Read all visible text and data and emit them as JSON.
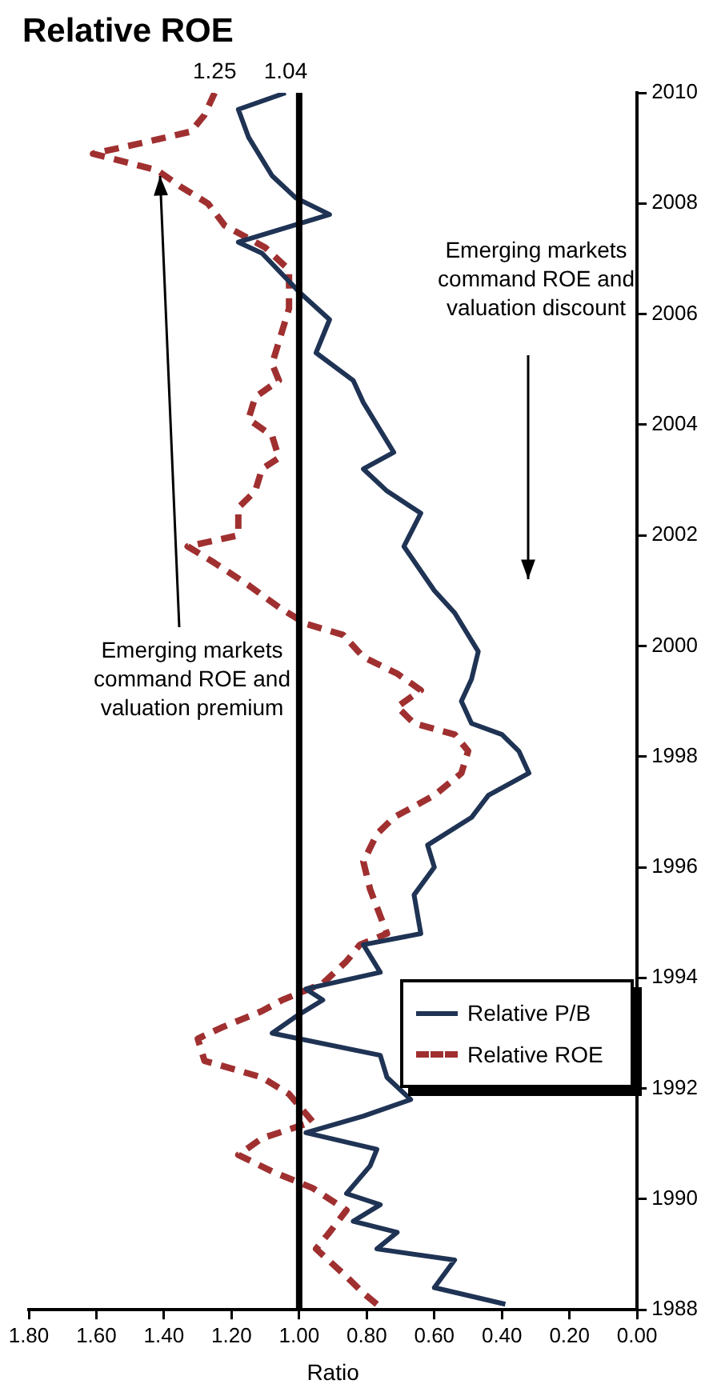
{
  "chart_data": {
    "type": "line",
    "title": "Relative ROE",
    "xlabel": "Ratio",
    "xlim": [
      1.8,
      0
    ],
    "xticks": [
      {
        "value": 1.8,
        "label": "1.80"
      },
      {
        "value": 1.6,
        "label": "1.60"
      },
      {
        "value": 1.4,
        "label": "1.40"
      },
      {
        "value": 1.2,
        "label": "1.20"
      },
      {
        "value": 1,
        "label": "1.00"
      },
      {
        "value": 0.8,
        "label": "0.80"
      },
      {
        "value": 0.6,
        "label": "0.60"
      },
      {
        "value": 0.4,
        "label": "0.40"
      },
      {
        "value": 0.2,
        "label": "0.20"
      },
      {
        "value": 0,
        "label": "0.00"
      }
    ],
    "ylim": [
      1988,
      2010
    ],
    "yticks": [
      1988,
      1990,
      1992,
      1994,
      1996,
      1998,
      2000,
      2002,
      2004,
      2006,
      2008,
      2010
    ],
    "grid": false,
    "legend": "bottom right",
    "marker": "none",
    "ref_lines": [
      {
        "axis": "x",
        "value": 1,
        "color": "#000000"
      }
    ],
    "annotations": [
      "Emerging markets command ROE and valuation premium",
      "Emerging markets command ROE and valuation discount",
      {
        "text": "1.25",
        "x": 1.25,
        "y": 2010
      },
      {
        "text": "1.04",
        "x": 1.04,
        "y": 2010
      }
    ],
    "series": [
      {
        "name": "Relative P/B",
        "color": "#1f3354",
        "line_style": "solid",
        "values": [
          1988.1,
          1988.4,
          1988.9,
          1989.1,
          1989.4,
          1989.6,
          1989.9,
          1990.1,
          1990.6,
          1990.9,
          1991.2,
          1991.5,
          1991.8,
          1992.2,
          1992.6,
          1993,
          1993.3,
          1993.6,
          1993.8,
          1994.1,
          1994.6,
          1994.8,
          1995.5,
          1996,
          1996.4,
          1996.9,
          1997.3,
          1997.7,
          1998.1,
          1998.4,
          1998.6,
          1999,
          1999.4,
          1999.9,
          2000.6,
          2001,
          2001.8,
          2002.4,
          2002.8,
          2003.2,
          2003.5,
          2004.4,
          2004.8,
          2005.3,
          2005.9,
          2006.4,
          2007.1,
          2007.3,
          2007.8,
          2008.1,
          2008.5,
          2009.2,
          2009.7,
          2010
        ],
        "x": [
          0.39,
          0.6,
          0.54,
          0.77,
          0.71,
          0.84,
          0.76,
          0.86,
          0.79,
          0.77,
          0.98,
          0.81,
          0.67,
          0.74,
          0.76,
          1.08,
          1.01,
          0.93,
          0.98,
          0.76,
          0.81,
          0.64,
          0.66,
          0.6,
          0.62,
          0.49,
          0.44,
          0.32,
          0.35,
          0.4,
          0.49,
          0.52,
          0.49,
          0.47,
          0.54,
          0.6,
          0.69,
          0.64,
          0.74,
          0.81,
          0.72,
          0.81,
          0.84,
          0.95,
          0.91,
          1,
          1.11,
          1.18,
          0.91,
          1.01,
          1.08,
          1.15,
          1.18,
          1.04
        ]
      },
      {
        "name": "Relative ROE",
        "color": "#a03030",
        "line_style": "dashed",
        "values": [
          1988.1,
          1988.3,
          1988.6,
          1989.1,
          1989.4,
          1989.8,
          1990.2,
          1990.5,
          1990.8,
          1991.1,
          1991.4,
          1991.9,
          1992.2,
          1992.5,
          1992.9,
          1993.1,
          1993.4,
          1993.6,
          1993.9,
          1994.3,
          1994.6,
          1994.8,
          1995.6,
          1996.1,
          1996.6,
          1996.9,
          1997.3,
          1997.7,
          1998.1,
          1998.4,
          1998.6,
          1998.9,
          1999.2,
          1999.5,
          1999.8,
          2000.2,
          2000.4,
          2000.7,
          2001.1,
          2001.5,
          2001.8,
          2002,
          2002.5,
          2002.8,
          2003.2,
          2003.4,
          2003.8,
          2004.1,
          2004.5,
          2004.8,
          2005.1,
          2005.5,
          2006.1,
          2006.8,
          2007.2,
          2007.6,
          2008,
          2008.3,
          2008.6,
          2008.9,
          2009.1,
          2009.3,
          2009.6,
          2010
        ],
        "x": [
          0.77,
          0.81,
          0.86,
          0.95,
          0.91,
          0.86,
          0.96,
          1.08,
          1.18,
          1.11,
          0.96,
          1.03,
          1.11,
          1.28,
          1.3,
          1.23,
          1.11,
          1.05,
          0.93,
          0.86,
          0.82,
          0.74,
          0.79,
          0.81,
          0.77,
          0.72,
          0.6,
          0.52,
          0.5,
          0.54,
          0.66,
          0.71,
          0.64,
          0.71,
          0.81,
          0.87,
          0.98,
          1.06,
          1.15,
          1.25,
          1.33,
          1.18,
          1.18,
          1.13,
          1.11,
          1.06,
          1.08,
          1.15,
          1.13,
          1.06,
          1.08,
          1.06,
          1.03,
          1.03,
          1.1,
          1.22,
          1.27,
          1.35,
          1.42,
          1.61,
          1.46,
          1.32,
          1.28,
          1.25
        ]
      }
    ]
  }
}
